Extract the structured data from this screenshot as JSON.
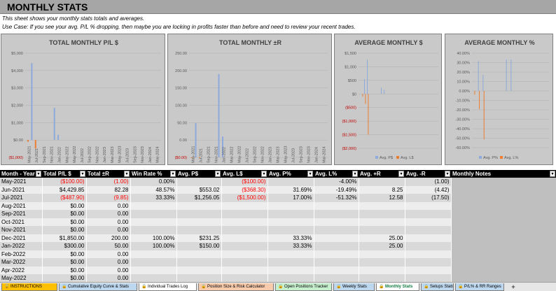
{
  "header": {
    "title": "MONTHLY STATS",
    "desc1": "This sheet shows your monthly stats totals and averages.",
    "desc2": "Use Case: If you see your avg. P/L % dropping, then maybe you are locking in profits faster than before and need to review your recent trades."
  },
  "colors": {
    "blue": "#8ea9db",
    "orange": "#ed7d31",
    "neg": "#ff0000",
    "panel": "#c9c9c9"
  },
  "charts": {
    "x_labels": [
      "May-2021",
      "Jul-2021",
      "Sep-2021",
      "Nov-2021",
      "Jan-2022",
      "Mar-2022",
      "May-2022",
      "Jul-2022",
      "Sep-2022",
      "Nov-2022",
      "Jan-2023",
      "Mar-2023",
      "May-2023",
      "Jul-2023",
      "Sep-2023",
      "Nov-2023",
      "Jan-2024",
      "Mar-2024"
    ],
    "total_pl": {
      "title": "TOTAL MONTHLY P/L $",
      "y_ticks": [
        "$5,000",
        "$4,000",
        "$3,000",
        "$2,000",
        "$1,000",
        "$0.00",
        "($1,000)"
      ]
    },
    "total_r": {
      "title": "TOTAL MONTHLY ±R",
      "y_ticks": [
        "250.00",
        "200.00",
        "150.00",
        "100.00",
        "50.00",
        "0.00",
        "($0.00)"
      ]
    },
    "avg_dollar": {
      "title": "AVERAGE MONTHLY $",
      "y_ticks": [
        "$1,500",
        "$1,000",
        "$500",
        "$0",
        "($500)",
        "($1,000)",
        "($1,500)",
        "($2,000)"
      ],
      "legend": [
        "Avg. P$",
        "Avg. L$"
      ]
    },
    "avg_pct": {
      "title": "AVERAGE MONTHLY %",
      "y_ticks": [
        "40.00%",
        "30.00%",
        "20.00%",
        "10.00%",
        "0.00%",
        "-10.00%",
        "-20.00%",
        "-30.00%",
        "-40.00%",
        "-50.00%",
        "-60.00%"
      ],
      "legend": [
        "Avg. P%",
        "Avg. L%"
      ]
    }
  },
  "chart_data": [
    {
      "type": "bar",
      "title": "TOTAL MONTHLY P/L $",
      "categories": [
        "May-2021",
        "Jun-2021",
        "Jul-2021",
        "Aug-2021",
        "Sep-2021",
        "Oct-2021",
        "Nov-2021",
        "Dec-2021",
        "Jan-2022",
        "Feb-2022",
        "Mar-2022",
        "Apr-2022"
      ],
      "values": [
        -100,
        4429.85,
        -487.9,
        0,
        0,
        0,
        0,
        1850,
        300,
        0,
        0,
        0
      ],
      "ylim": [
        -1000,
        5000
      ]
    },
    {
      "type": "bar",
      "title": "TOTAL MONTHLY ±R",
      "categories": [
        "May-2021",
        "Jun-2021",
        "Jul-2021",
        "Aug-2021",
        "Sep-2021",
        "Oct-2021",
        "Nov-2021",
        "Dec-2021",
        "Jan-2022",
        "Feb-2022",
        "Mar-2022",
        "Apr-2022"
      ],
      "values": [
        -1,
        82.28,
        -9.85,
        0,
        0,
        0,
        0,
        200,
        50,
        0,
        0,
        0
      ],
      "ylim": [
        0,
        250
      ]
    },
    {
      "type": "bar",
      "title": "AVERAGE MONTHLY $",
      "categories": [
        "May-2021",
        "Jun-2021",
        "Jul-2021",
        "Aug-2021",
        "Sep-2021",
        "Oct-2021",
        "Nov-2021",
        "Dec-2021",
        "Jan-2022"
      ],
      "series": [
        {
          "name": "Avg. P$",
          "values": [
            0,
            553.02,
            1256.05,
            0,
            0,
            0,
            0,
            231.25,
            150
          ]
        },
        {
          "name": "Avg. L$",
          "values": [
            -100,
            -368.3,
            -1500,
            0,
            0,
            0,
            0,
            0,
            0
          ]
        }
      ],
      "ylim": [
        -2000,
        1500
      ]
    },
    {
      "type": "bar",
      "title": "AVERAGE MONTHLY %",
      "categories": [
        "May-2021",
        "Jun-2021",
        "Jul-2021",
        "Aug-2021",
        "Sep-2021",
        "Oct-2021",
        "Nov-2021",
        "Dec-2021",
        "Jan-2022"
      ],
      "series": [
        {
          "name": "Avg. P%",
          "values": [
            0,
            31.69,
            17.0,
            0,
            0,
            0,
            0,
            33.33,
            33.33
          ]
        },
        {
          "name": "Avg. L%",
          "values": [
            -4.0,
            -19.49,
            -51.32,
            0,
            0,
            0,
            0,
            0,
            0
          ]
        }
      ],
      "ylim": [
        -60,
        40
      ]
    }
  ],
  "table": {
    "headers": [
      "Month - Year",
      "Total P/L $",
      "Total ±R",
      "Win Rate %",
      "Avg. P$",
      "Avg. L$",
      "Avg. P%",
      "Avg. L%",
      "Avg. +R",
      "Avg. -R",
      "Monthly Notes"
    ],
    "rows": [
      {
        "c": [
          "May-2021",
          "($100.00)",
          "(1.00)",
          "0.00%",
          "",
          "($100.00)",
          "",
          "-4.00%",
          "",
          "(1.00)",
          ""
        ],
        "neg": [
          1,
          2,
          5
        ]
      },
      {
        "c": [
          "Jun-2021",
          "$4,429.85",
          "82.28",
          "48.57%",
          "$553.02",
          "($368.30)",
          "31.69%",
          "-19.49%",
          "8.25",
          "(4.42)",
          ""
        ],
        "neg": [
          5
        ]
      },
      {
        "c": [
          "Jul-2021",
          "($487.90)",
          "(9.85)",
          "33.33%",
          "$1,256.05",
          "($1,500.00)",
          "17.00%",
          "-51.32%",
          "12.58",
          "(17.50)",
          ""
        ],
        "neg": [
          1,
          2,
          5
        ]
      },
      {
        "c": [
          "Aug-2021",
          "$0.00",
          "0.00",
          "",
          "",
          "",
          "",
          "",
          "",
          "",
          ""
        ],
        "neg": []
      },
      {
        "c": [
          "Sep-2021",
          "$0.00",
          "0.00",
          "",
          "",
          "",
          "",
          "",
          "",
          "",
          ""
        ],
        "neg": []
      },
      {
        "c": [
          "Oct-2021",
          "$0.00",
          "0.00",
          "",
          "",
          "",
          "",
          "",
          "",
          "",
          ""
        ],
        "neg": []
      },
      {
        "c": [
          "Nov-2021",
          "$0.00",
          "0.00",
          "",
          "",
          "",
          "",
          "",
          "",
          "",
          ""
        ],
        "neg": []
      },
      {
        "c": [
          "Dec-2021",
          "$1,850.00",
          "200.00",
          "100.00%",
          "$231.25",
          "",
          "33.33%",
          "",
          "25.00",
          "",
          ""
        ],
        "neg": []
      },
      {
        "c": [
          "Jan-2022",
          "$300.00",
          "50.00",
          "100.00%",
          "$150.00",
          "",
          "33.33%",
          "",
          "25.00",
          "",
          ""
        ],
        "neg": []
      },
      {
        "c": [
          "Feb-2022",
          "$0.00",
          "0.00",
          "",
          "",
          "",
          "",
          "",
          "",
          "",
          ""
        ],
        "neg": []
      },
      {
        "c": [
          "Mar-2022",
          "$0.00",
          "0.00",
          "",
          "",
          "",
          "",
          "",
          "",
          "",
          ""
        ],
        "neg": []
      },
      {
        "c": [
          "Apr-2022",
          "$0.00",
          "0.00",
          "",
          "",
          "",
          "",
          "",
          "",
          "",
          ""
        ],
        "neg": []
      },
      {
        "c": [
          "May-2022",
          "$0.00",
          "0.00",
          "",
          "",
          "",
          "",
          "",
          "",
          "",
          ""
        ],
        "neg": []
      }
    ]
  },
  "sheet_tabs": [
    {
      "label": "INSTRUCTIONS",
      "bg": "#ffc000",
      "active": false
    },
    {
      "label": "Cumulative Equity Curve & Stats",
      "bg": "#bdd7ee",
      "active": false
    },
    {
      "label": "Individual Trades Log",
      "bg": "#ffffff",
      "active": false
    },
    {
      "label": "Position Size & Risk Calculator",
      "bg": "#f8cbad",
      "active": false
    },
    {
      "label": "Open Positions Tracker",
      "bg": "#c6efce",
      "active": false
    },
    {
      "label": "Weekly Stats",
      "bg": "#bdd7ee",
      "active": false
    },
    {
      "label": "Monthly Stats",
      "bg": "#ffffff",
      "active": true
    },
    {
      "label": "Setups Stats",
      "bg": "#bdd7ee",
      "active": false
    },
    {
      "label": "P/L% & RR Ranges",
      "bg": "#bdd7ee",
      "active": false
    }
  ]
}
